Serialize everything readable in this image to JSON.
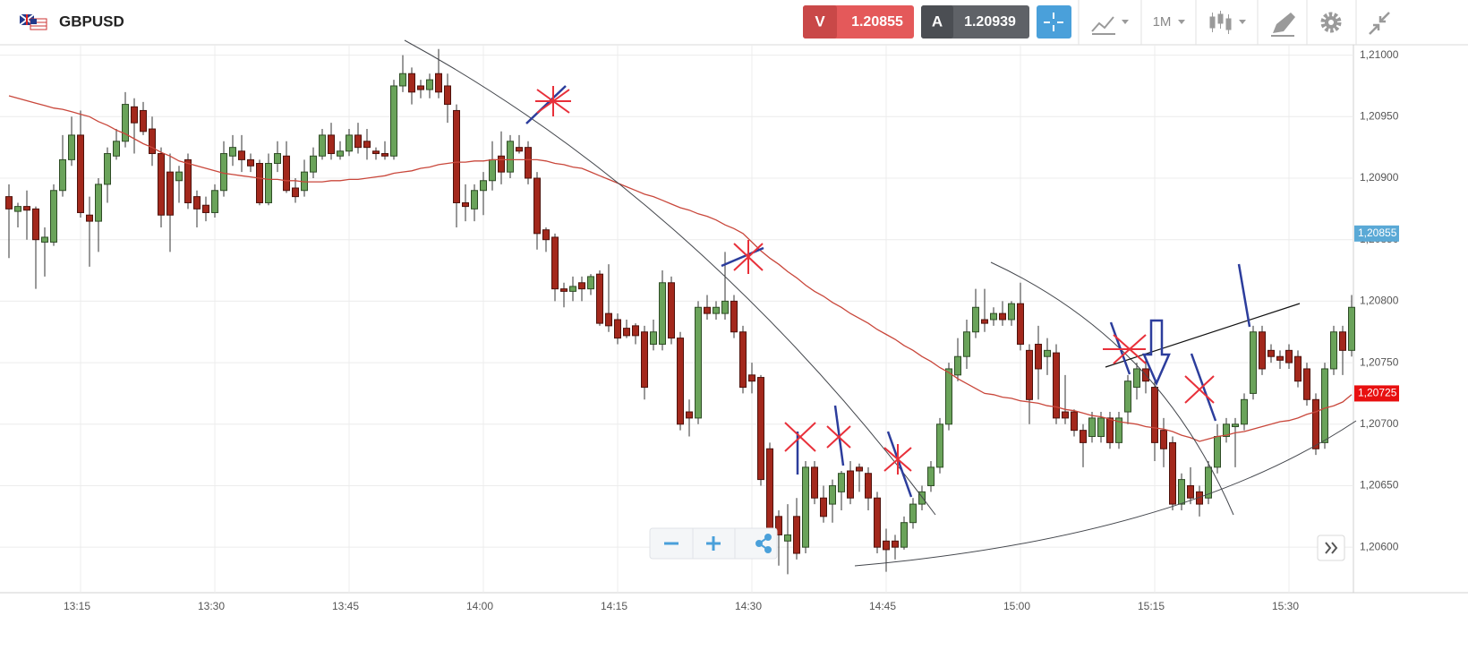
{
  "header": {
    "symbol": "GBPUSD",
    "sell": {
      "letter": "V",
      "price": "1.20855"
    },
    "buy": {
      "letter": "A",
      "price": "1.20939"
    },
    "timeframe": "1M"
  },
  "chart_data": {
    "type": "candlestick",
    "x": [
      "13:07",
      "13:08",
      "13:09",
      "13:10",
      "13:11",
      "13:12",
      "13:13",
      "13:14",
      "13:15",
      "13:16",
      "13:17",
      "13:18",
      "13:19",
      "13:20",
      "13:21",
      "13:22",
      "13:23",
      "13:24",
      "13:25",
      "13:26",
      "13:27",
      "13:28",
      "13:29",
      "13:30",
      "13:31",
      "13:32",
      "13:33",
      "13:34",
      "13:35",
      "13:36",
      "13:37",
      "13:38",
      "13:39",
      "13:40",
      "13:41",
      "13:42",
      "13:43",
      "13:44",
      "13:45",
      "13:46",
      "13:47",
      "13:48",
      "13:49",
      "13:50",
      "13:51",
      "13:52",
      "13:53",
      "13:54",
      "13:55",
      "13:56",
      "13:57",
      "13:58",
      "13:59",
      "14:00",
      "14:01",
      "14:02",
      "14:03",
      "14:04",
      "14:05",
      "14:06",
      "14:07",
      "14:08",
      "14:09",
      "14:10",
      "14:11",
      "14:12",
      "14:13",
      "14:14",
      "14:15",
      "14:16",
      "14:17",
      "14:18",
      "14:19",
      "14:20",
      "14:21",
      "14:22",
      "14:23",
      "14:24",
      "14:25",
      "14:26",
      "14:27",
      "14:28",
      "14:29",
      "14:30",
      "14:31",
      "14:32",
      "14:33",
      "14:34",
      "14:35",
      "14:36",
      "14:37",
      "14:38",
      "14:39",
      "14:40",
      "14:41",
      "14:42",
      "14:43",
      "14:44",
      "14:45",
      "14:46",
      "14:47",
      "14:48",
      "14:49",
      "14:50",
      "14:51",
      "14:52",
      "14:53",
      "14:54",
      "14:55",
      "14:56",
      "14:57",
      "14:58",
      "14:59",
      "15:00",
      "15:01",
      "15:02",
      "15:03",
      "15:04",
      "15:05",
      "15:06",
      "15:07",
      "15:08",
      "15:09",
      "15:10",
      "15:11",
      "15:12",
      "15:13",
      "15:14",
      "15:15",
      "15:16",
      "15:17",
      "15:18",
      "15:19",
      "15:20",
      "15:21",
      "15:22",
      "15:23",
      "15:24",
      "15:25",
      "15:26",
      "15:27",
      "15:28",
      "15:29",
      "15:30",
      "15:31",
      "15:32",
      "15:33",
      "15:34",
      "15:35",
      "15:36",
      "15:37"
    ],
    "open": [
      1.20885,
      1.20873,
      1.20877,
      1.20875,
      1.20848,
      1.20848,
      1.2089,
      1.20915,
      1.20935,
      1.2087,
      1.20865,
      1.20895,
      1.20918,
      1.2093,
      1.20958,
      1.20955,
      1.2094,
      1.2092,
      1.20905,
      1.20898,
      1.20915,
      1.20885,
      1.20878,
      1.20872,
      1.2089,
      1.20918,
      1.20922,
      1.20915,
      1.20912,
      1.2088,
      1.20912,
      1.20918,
      1.20892,
      1.2089,
      1.20905,
      1.20918,
      1.20935,
      1.20918,
      1.20922,
      1.20935,
      1.2093,
      1.20922,
      1.2092,
      1.20918,
      1.20975,
      1.20985,
      1.20975,
      1.20972,
      1.20985,
      1.20975,
      1.20955,
      1.2088,
      1.20875,
      1.2089,
      1.20898,
      1.20918,
      1.20905,
      1.20925,
      1.20925,
      1.209,
      1.20858,
      1.20852,
      1.2081,
      1.20808,
      1.20815,
      1.2081,
      1.20822,
      1.2079,
      1.20785,
      1.20778,
      1.2078,
      1.20775,
      1.20765,
      1.20765,
      1.20815,
      1.2077,
      1.2071,
      1.20705,
      1.20795,
      1.2079,
      1.2079,
      1.208,
      1.20775,
      1.2074,
      1.20738,
      1.2068,
      1.20625,
      1.20605,
      1.20625,
      1.206,
      1.20665,
      1.2064,
      1.20635,
      1.20645,
      1.20662,
      1.20665,
      1.2066,
      1.2064,
      1.20605,
      1.20605,
      1.206,
      1.2062,
      1.20635,
      1.2065,
      1.20665,
      1.207,
      1.2074,
      1.20755,
      1.20775,
      1.20785,
      1.20785,
      1.2079,
      1.20785,
      1.20798,
      1.2076,
      1.20765,
      1.20755,
      1.20758,
      1.2071,
      1.2071,
      1.20695,
      1.2069,
      1.2069,
      1.20705,
      1.20685,
      1.2071,
      1.2073,
      1.20745,
      1.2073,
      1.20695,
      1.20685,
      1.20635,
      1.2065,
      1.20645,
      1.2064,
      1.20665,
      1.2069,
      1.20698,
      1.207,
      1.20725,
      1.20775,
      1.2076,
      1.20755,
      1.2076,
      1.20755,
      1.20745,
      1.2072,
      1.20685,
      1.20745,
      1.20775,
      1.2076
    ],
    "high": [
      1.20895,
      1.2088,
      1.2089,
      1.20877,
      1.2086,
      1.20895,
      1.20935,
      1.2095,
      1.20955,
      1.20885,
      1.209,
      1.20925,
      1.2094,
      1.2097,
      1.20965,
      1.20962,
      1.2095,
      1.20925,
      1.2092,
      1.2091,
      1.2092,
      1.2089,
      1.20885,
      1.20895,
      1.2093,
      1.20935,
      1.20935,
      1.2092,
      1.20915,
      1.2092,
      1.2093,
      1.2093,
      1.209,
      1.20915,
      1.20925,
      1.2094,
      1.20945,
      1.2093,
      1.2094,
      1.20945,
      1.2094,
      1.20925,
      1.2093,
      1.2098,
      1.21,
      1.2099,
      1.2098,
      1.20985,
      1.21005,
      1.20985,
      1.2096,
      1.20895,
      1.20895,
      1.20905,
      1.2093,
      1.20938,
      1.20935,
      1.20935,
      1.2093,
      1.20905,
      1.2086,
      1.20855,
      1.20815,
      1.2082,
      1.2082,
      1.20822,
      1.20825,
      1.2083,
      1.2079,
      1.20785,
      1.20782,
      1.2078,
      1.20785,
      1.20825,
      1.2082,
      1.20775,
      1.2072,
      1.208,
      1.20805,
      1.208,
      1.2084,
      1.20805,
      1.2078,
      1.2075,
      1.2074,
      1.20685,
      1.2063,
      1.20635,
      1.2064,
      1.2067,
      1.2067,
      1.2065,
      1.20655,
      1.20662,
      1.2067,
      1.20668,
      1.20665,
      1.20645,
      1.20615,
      1.2061,
      1.20625,
      1.2064,
      1.2065,
      1.2067,
      1.20705,
      1.2075,
      1.2077,
      1.20785,
      1.2081,
      1.2081,
      1.20795,
      1.208,
      1.208,
      1.20815,
      1.20765,
      1.2078,
      1.2077,
      1.20765,
      1.2074,
      1.20712,
      1.207,
      1.2071,
      1.2071,
      1.2071,
      1.2071,
      1.2074,
      1.2075,
      1.20752,
      1.20735,
      1.20705,
      1.2069,
      1.2066,
      1.20665,
      1.2065,
      1.2067,
      1.207,
      1.20705,
      1.20705,
      1.20725,
      1.2078,
      1.2078,
      1.20765,
      1.2076,
      1.20765,
      1.2076,
      1.2075,
      1.20725,
      1.2075,
      1.2078,
      1.2078,
      1.20805
    ],
    "low": [
      1.20835,
      1.2086,
      1.2085,
      1.2081,
      1.2082,
      1.20845,
      1.20885,
      1.2091,
      1.20868,
      1.20828,
      1.2084,
      1.2088,
      1.20915,
      1.20925,
      1.2092,
      1.20935,
      1.2091,
      1.2086,
      1.2084,
      1.2088,
      1.20875,
      1.2086,
      1.20865,
      1.20868,
      1.20885,
      1.2091,
      1.20905,
      1.20905,
      1.20878,
      1.20878,
      1.20905,
      1.20888,
      1.2088,
      1.20885,
      1.209,
      1.20915,
      1.20915,
      1.20915,
      1.20918,
      1.2092,
      1.20915,
      1.20915,
      1.20915,
      1.20915,
      1.2097,
      1.2096,
      1.20965,
      1.20965,
      1.20965,
      1.20945,
      1.2086,
      1.20865,
      1.20865,
      1.2087,
      1.2089,
      1.20895,
      1.209,
      1.2092,
      1.20895,
      1.20842,
      1.2084,
      1.208,
      1.20795,
      1.208,
      1.208,
      1.20805,
      1.2078,
      1.20775,
      1.20765,
      1.2077,
      1.20765,
      1.2072,
      1.2076,
      1.2076,
      1.20765,
      1.20695,
      1.2069,
      1.207,
      1.20785,
      1.20785,
      1.20785,
      1.2077,
      1.20725,
      1.20725,
      1.2065,
      1.2061,
      1.20585,
      1.20578,
      1.2059,
      1.20595,
      1.20635,
      1.2062,
      1.2062,
      1.2063,
      1.20635,
      1.20645,
      1.2063,
      1.20595,
      1.2058,
      1.2059,
      1.20598,
      1.20615,
      1.2063,
      1.20645,
      1.2066,
      1.20695,
      1.20735,
      1.20745,
      1.2077,
      1.20775,
      1.2078,
      1.2078,
      1.2078,
      1.2076,
      1.207,
      1.2072,
      1.2074,
      1.207,
      1.207,
      1.2069,
      1.20665,
      1.20685,
      1.20685,
      1.2068,
      1.2068,
      1.207,
      1.2072,
      1.20725,
      1.2067,
      1.20665,
      1.2063,
      1.2063,
      1.20635,
      1.20625,
      1.20635,
      1.2066,
      1.20685,
      1.20665,
      1.20695,
      1.2072,
      1.2074,
      1.2075,
      1.20745,
      1.20745,
      1.2073,
      1.20715,
      1.20675,
      1.2068,
      1.2074,
      1.2074,
      1.20755
    ],
    "close": [
      1.20875,
      1.20877,
      1.20874,
      1.2085,
      1.20852,
      1.2089,
      1.20915,
      1.20935,
      1.20872,
      1.20865,
      1.20895,
      1.2092,
      1.2093,
      1.2096,
      1.20945,
      1.20938,
      1.2092,
      1.2087,
      1.2087,
      1.20905,
      1.2088,
      1.20875,
      1.20872,
      1.2089,
      1.2092,
      1.20925,
      1.20915,
      1.2091,
      1.2088,
      1.20912,
      1.2092,
      1.2089,
      1.20885,
      1.20905,
      1.20918,
      1.20935,
      1.2092,
      1.20922,
      1.20935,
      1.20925,
      1.20925,
      1.2092,
      1.20918,
      1.20975,
      1.20985,
      1.2097,
      1.20972,
      1.2098,
      1.2097,
      1.2096,
      1.2088,
      1.20877,
      1.2089,
      1.20898,
      1.20915,
      1.20905,
      1.2093,
      1.20922,
      1.209,
      1.20855,
      1.2085,
      1.2081,
      1.20808,
      1.20812,
      1.2081,
      1.2082,
      1.20782,
      1.2078,
      1.2077,
      1.20772,
      1.20772,
      1.2073,
      1.20775,
      1.20815,
      1.2077,
      1.207,
      1.20705,
      1.20795,
      1.2079,
      1.20795,
      1.208,
      1.20775,
      1.2073,
      1.20735,
      1.20655,
      1.20615,
      1.2061,
      1.2061,
      1.20595,
      1.20665,
      1.2064,
      1.20625,
      1.2065,
      1.2066,
      1.2064,
      1.20662,
      1.2064,
      1.206,
      1.20598,
      1.206,
      1.2062,
      1.20635,
      1.20645,
      1.20665,
      1.207,
      1.20745,
      1.20755,
      1.20775,
      1.20795,
      1.20782,
      1.2079,
      1.20785,
      1.20798,
      1.20765,
      1.2072,
      1.20745,
      1.2076,
      1.20705,
      1.20705,
      1.20695,
      1.20685,
      1.20705,
      1.20705,
      1.20685,
      1.20705,
      1.20735,
      1.20745,
      1.20735,
      1.20685,
      1.2068,
      1.20635,
      1.20655,
      1.2064,
      1.20635,
      1.20665,
      1.2069,
      1.207,
      1.207,
      1.2072,
      1.20775,
      1.20745,
      1.20755,
      1.20752,
      1.2075,
      1.20735,
      1.2072,
      1.2068,
      1.20745,
      1.20775,
      1.2076,
      1.20795
    ],
    "up_color": "#6aa35a",
    "down_color": "#a3281c",
    "ma": {
      "color": "#c9473b",
      "values": [
        1.20967,
        1.20965,
        1.20963,
        1.20961,
        1.20959,
        1.20957,
        1.20956,
        1.20954,
        1.20952,
        1.2095,
        1.20946,
        1.20943,
        1.20939,
        1.20936,
        1.20932,
        1.20928,
        1.20925,
        1.20921,
        1.20918,
        1.20914,
        1.20912,
        1.2091,
        1.20908,
        1.20906,
        1.20904,
        1.20903,
        1.20902,
        1.20901,
        1.209,
        1.20899,
        1.20899,
        1.20898,
        1.20898,
        1.20897,
        1.20897,
        1.20897,
        1.20898,
        1.20898,
        1.20899,
        1.20899,
        1.209,
        1.20901,
        1.20902,
        1.20904,
        1.20905,
        1.20906,
        1.20908,
        1.20909,
        1.20911,
        1.20912,
        1.20913,
        1.20913,
        1.20914,
        1.20914,
        1.20915,
        1.20915,
        1.20915,
        1.20915,
        1.20915,
        1.20915,
        1.20914,
        1.20912,
        1.20911,
        1.20909,
        1.20908,
        1.20905,
        1.20902,
        1.20899,
        1.20896,
        1.20893,
        1.2089,
        1.20887,
        1.20885,
        1.20882,
        1.20879,
        1.20876,
        1.20874,
        1.20871,
        1.20869,
        1.20866,
        1.20862,
        1.20859,
        1.20855,
        1.20848,
        1.20841,
        1.20835,
        1.2083,
        1.20824,
        1.20819,
        1.20813,
        1.20808,
        1.20804,
        1.20799,
        1.20795,
        1.2079,
        1.20786,
        1.20782,
        1.20777,
        1.20773,
        1.20769,
        1.20764,
        1.2076,
        1.20755,
        1.20751,
        1.20746,
        1.20742,
        1.20737,
        1.20733,
        1.20729,
        1.20725,
        1.20724,
        1.20722,
        1.20721,
        1.20719,
        1.20718,
        1.20717,
        1.20715,
        1.20714,
        1.20712,
        1.20711,
        1.20709,
        1.20707,
        1.20706,
        1.20704,
        1.20702,
        1.20701,
        1.207,
        1.20698,
        1.20697,
        1.20696,
        1.20694,
        1.20691,
        1.20689,
        1.20686,
        1.20688,
        1.2069,
        1.20691,
        1.20693,
        1.20694,
        1.20696,
        1.20698,
        1.207,
        1.20702,
        1.20703,
        1.20705,
        1.20708,
        1.2071,
        1.20713,
        1.20715,
        1.20718,
        1.20724
      ]
    },
    "ylim": [
      1.20563,
      1.21007
    ],
    "yticks": [
      {
        "value": 1.21,
        "label": "1,21000"
      },
      {
        "value": 1.2095,
        "label": "1,20950"
      },
      {
        "value": 1.209,
        "label": "1,20900"
      },
      {
        "value": 1.2085,
        "label": "1,20850"
      },
      {
        "value": 1.208,
        "label": "1,20800"
      },
      {
        "value": 1.2075,
        "label": "1,20750"
      },
      {
        "value": 1.207,
        "label": "1,20700"
      },
      {
        "value": 1.2065,
        "label": "1,20650"
      },
      {
        "value": 1.206,
        "label": "1,20600"
      }
    ],
    "grid": true,
    "bid_marker": {
      "value": 1.20855,
      "label": "1,20855",
      "color": "#5aa9d6"
    },
    "ma_marker": {
      "value": 1.20725,
      "label": "1,20725",
      "color": "#e81010"
    }
  }
}
